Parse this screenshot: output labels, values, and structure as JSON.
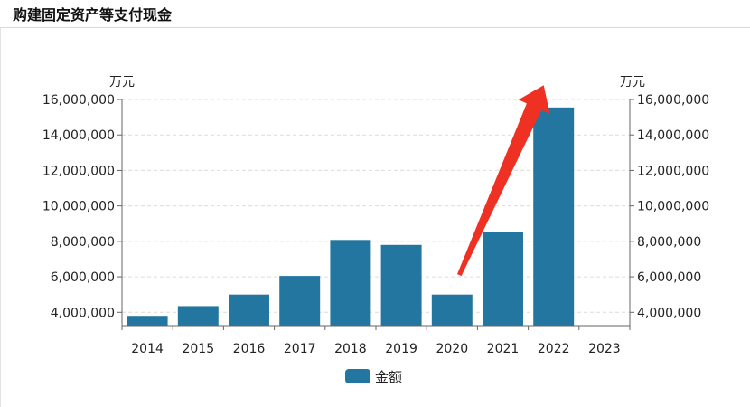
{
  "header": {
    "title": "购建固定资产等支付现金"
  },
  "chart_data": {
    "type": "bar",
    "categories": [
      "2014",
      "2015",
      "2016",
      "2017",
      "2018",
      "2019",
      "2020",
      "2021",
      "2022",
      "2023"
    ],
    "series": [
      {
        "name": "金额",
        "values": [
          3800000,
          4350000,
          5000000,
          6050000,
          8080000,
          7800000,
          5000000,
          8530000,
          15550000,
          null
        ]
      }
    ],
    "ylim": [
      3250000,
      16000000
    ],
    "yticks": [
      4000000,
      6000000,
      8000000,
      10000000,
      12000000,
      14000000,
      16000000
    ],
    "ytick_labels": [
      "4,000,000",
      "6,000,000",
      "8,000,000",
      "10,000,000",
      "12,000,000",
      "14,000,000",
      "16,000,000"
    ],
    "yunit_left": "万元",
    "yunit_right": "万元",
    "grid": true,
    "legend_position": "bottom-center",
    "bar_color": "#23769f",
    "annotation": {
      "type": "arrow",
      "color": "#ef3124",
      "from_category": "2020",
      "to_category": "2022",
      "meaning": "upward trend"
    }
  }
}
